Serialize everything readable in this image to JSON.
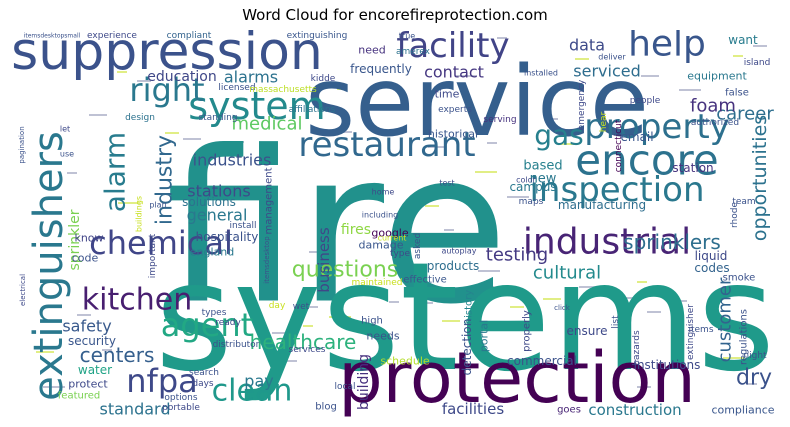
{
  "chart_data": {
    "type": "wordcloud",
    "title": "Word Cloud for encorefireprotection.com",
    "background": "#ffffff",
    "colormap": "viridis",
    "words": [
      {
        "text": "fire",
        "weight": 1.0,
        "color": "#21918c"
      },
      {
        "text": "systems",
        "weight": 0.92,
        "color": "#1f9a8a"
      },
      {
        "text": "service",
        "weight": 0.62,
        "color": "#355f8d"
      },
      {
        "text": "protection",
        "weight": 0.56,
        "color": "#440154"
      },
      {
        "text": "suppression",
        "weight": 0.42,
        "color": "#3b528b"
      },
      {
        "text": "extinguishers",
        "weight": 0.38,
        "color": "#2a788e"
      },
      {
        "text": "encore",
        "weight": 0.36,
        "color": "#2c728e"
      },
      {
        "text": "industrial",
        "weight": 0.34,
        "color": "#482475"
      },
      {
        "text": "facility",
        "weight": 0.32,
        "color": "#414487"
      },
      {
        "text": "property",
        "weight": 0.3,
        "color": "#2d708e"
      },
      {
        "text": "system",
        "weight": 0.3,
        "color": "#238a8d"
      },
      {
        "text": "restaurant",
        "weight": 0.3,
        "color": "#31688e"
      },
      {
        "text": "inspection",
        "weight": 0.3,
        "color": "#2a788e"
      },
      {
        "text": "help",
        "weight": 0.3,
        "color": "#39568c"
      },
      {
        "text": "chemical",
        "weight": 0.29,
        "color": "#404688"
      },
      {
        "text": "kitchen",
        "weight": 0.29,
        "color": "#481f70"
      },
      {
        "text": "agent",
        "weight": 0.28,
        "color": "#22a884"
      },
      {
        "text": "right",
        "weight": 0.27,
        "color": "#2a788e"
      },
      {
        "text": "gas",
        "weight": 0.27,
        "color": "#27808e"
      },
      {
        "text": "clean",
        "weight": 0.26,
        "color": "#1f988b"
      },
      {
        "text": "nfpa",
        "weight": 0.26,
        "color": "#3e4989"
      },
      {
        "text": "alarm",
        "weight": 0.24,
        "color": "#287c8e"
      },
      {
        "text": "industry",
        "weight": 0.22,
        "color": "#31688e"
      },
      {
        "text": "questions",
        "weight": 0.2,
        "color": "#7ad151"
      },
      {
        "text": "sprinklers",
        "weight": 0.17,
        "color": "#2e6f8e"
      },
      {
        "text": "healthcare",
        "weight": 0.17,
        "color": "#2db27d"
      },
      {
        "text": "centers",
        "weight": 0.17,
        "color": "#355f8d"
      },
      {
        "text": "opportunities",
        "weight": 0.16,
        "color": "#2c728e"
      },
      {
        "text": "dry",
        "weight": 0.17,
        "color": "#3b528b"
      },
      {
        "text": "customer",
        "weight": 0.15,
        "color": "#32648e"
      },
      {
        "text": "testing",
        "weight": 0.15,
        "color": "#443a83"
      },
      {
        "text": "career",
        "weight": 0.15,
        "color": "#2e6e8e"
      },
      {
        "text": "foam",
        "weight": 0.15,
        "color": "#46327e"
      },
      {
        "text": "cultural",
        "weight": 0.14,
        "color": "#238a8d"
      },
      {
        "text": "medical",
        "weight": 0.14,
        "color": "#5ec962"
      },
      {
        "text": "industries",
        "weight": 0.13,
        "color": "#3b528b"
      },
      {
        "text": "alarms",
        "weight": 0.13,
        "color": "#2c728e"
      },
      {
        "text": "stations",
        "weight": 0.12,
        "color": "#3e4a89"
      },
      {
        "text": "general",
        "weight": 0.12,
        "color": "#2a788e"
      },
      {
        "text": "standard",
        "weight": 0.12,
        "color": "#2c728e"
      },
      {
        "text": "safety",
        "weight": 0.12,
        "color": "#38598c"
      },
      {
        "text": "pay",
        "weight": 0.12,
        "color": "#2a788e"
      },
      {
        "text": "contact",
        "weight": 0.12,
        "color": "#453781"
      },
      {
        "text": "data",
        "weight": 0.12,
        "color": "#3e4a89"
      },
      {
        "text": "serviced",
        "weight": 0.12,
        "color": "#2e6d8e"
      },
      {
        "text": "sprinkler",
        "weight": 0.11,
        "color": "#7ad151"
      },
      {
        "text": "education",
        "weight": 0.1,
        "color": "#3f4788"
      },
      {
        "text": "fires",
        "weight": 0.1,
        "color": "#8fd744"
      },
      {
        "text": "business",
        "weight": 0.11,
        "color": "#3f4788"
      },
      {
        "text": "building",
        "weight": 0.1,
        "color": "#46307e"
      },
      {
        "text": "construction",
        "weight": 0.1,
        "color": "#2a788e"
      },
      {
        "text": "facilities",
        "weight": 0.1,
        "color": "#3e4989"
      },
      {
        "text": "products",
        "weight": 0.07,
        "color": "#2e6e8e"
      },
      {
        "text": "codes",
        "weight": 0.07,
        "color": "#33638d"
      },
      {
        "text": "liquid",
        "weight": 0.07,
        "color": "#3e4989"
      },
      {
        "text": "based",
        "weight": 0.08,
        "color": "#27808e"
      },
      {
        "text": "email",
        "weight": 0.07,
        "color": "#39568c"
      },
      {
        "text": "station",
        "weight": 0.07,
        "color": "#46337f"
      },
      {
        "text": "campus",
        "weight": 0.07,
        "color": "#2a788e"
      },
      {
        "text": "manufacturing",
        "weight": 0.07,
        "color": "#2e6e8e"
      },
      {
        "text": "new",
        "weight": 0.08,
        "color": "#2a788e"
      },
      {
        "text": "google",
        "weight": 0.06,
        "color": "#440154"
      },
      {
        "text": "hospitality",
        "weight": 0.07,
        "color": "#3b528b"
      },
      {
        "text": "solutions",
        "weight": 0.07,
        "color": "#2c728e"
      },
      {
        "text": "england",
        "weight": 0.07,
        "color": "#2a788e"
      },
      {
        "text": "know",
        "weight": 0.07,
        "color": "#414487"
      },
      {
        "text": "code",
        "weight": 0.06,
        "color": "#3b528b"
      },
      {
        "text": "water",
        "weight": 0.07,
        "color": "#20a386"
      },
      {
        "text": "protect",
        "weight": 0.06,
        "color": "#3e4989"
      },
      {
        "text": "security",
        "weight": 0.07,
        "color": "#39568c"
      },
      {
        "text": "featured",
        "weight": 0.05,
        "color": "#7ad151"
      },
      {
        "text": "commercial",
        "weight": 0.07,
        "color": "#3b528b"
      },
      {
        "text": "institutions",
        "weight": 0.07,
        "color": "#3e4989"
      },
      {
        "text": "schedule",
        "weight": 0.07,
        "color": "#b5de2b"
      },
      {
        "text": "compliance",
        "weight": 0.06,
        "color": "#39568c"
      },
      {
        "text": "portal",
        "weight": 0.07,
        "color": "#2a788e"
      },
      {
        "text": "ensure",
        "weight": 0.07,
        "color": "#3e4989"
      },
      {
        "text": "detection",
        "weight": 0.07,
        "color": "#3b528b"
      },
      {
        "text": "effective",
        "weight": 0.06,
        "color": "#39568c"
      },
      {
        "text": "maintained",
        "weight": 0.05,
        "color": "#c8e020"
      },
      {
        "text": "damage",
        "weight": 0.06,
        "color": "#39568c"
      },
      {
        "text": "blog",
        "weight": 0.05,
        "color": "#3b528b"
      },
      {
        "text": "goes",
        "weight": 0.06,
        "color": "#482475"
      },
      {
        "text": "local",
        "weight": 0.05,
        "color": "#3b528b"
      },
      {
        "text": "history",
        "weight": 0.06,
        "color": "#25848e"
      },
      {
        "text": "historical",
        "weight": 0.06,
        "color": "#39568c"
      },
      {
        "text": "time",
        "weight": 0.06,
        "color": "#3e4989"
      },
      {
        "text": "need",
        "weight": 0.06,
        "color": "#46327e"
      },
      {
        "text": "frequently",
        "weight": 0.07,
        "color": "#39568c"
      },
      {
        "text": "want",
        "weight": 0.06,
        "color": "#287c8e"
      },
      {
        "text": "equipment",
        "weight": 0.06,
        "color": "#2a788e"
      },
      {
        "text": "experience",
        "weight": 0.05,
        "color": "#3e4989"
      },
      {
        "text": "compliant",
        "weight": 0.05,
        "color": "#33638d"
      },
      {
        "text": "extinguishing",
        "weight": 0.05,
        "color": "#39568c"
      },
      {
        "text": "true",
        "weight": 0.04,
        "color": "#3b528b"
      },
      {
        "text": "kidde",
        "weight": 0.05,
        "color": "#3e4989"
      },
      {
        "text": "amerex",
        "weight": 0.05,
        "color": "#2c728e"
      },
      {
        "text": "licensed",
        "weight": 0.05,
        "color": "#3b528b"
      },
      {
        "text": "massachusetts",
        "weight": 0.05,
        "color": "#bddf26"
      },
      {
        "text": "management",
        "weight": 0.05,
        "color": "#3e4989"
      },
      {
        "text": "design",
        "weight": 0.05,
        "color": "#2c728e"
      },
      {
        "text": "standing",
        "weight": 0.05,
        "color": "#39568c"
      },
      {
        "text": "affiliations",
        "weight": 0.05,
        "color": "#2c728e"
      },
      {
        "text": "experts",
        "weight": 0.05,
        "color": "#3b528b"
      },
      {
        "text": "serving",
        "weight": 0.05,
        "color": "#46327e"
      },
      {
        "text": "emergency",
        "weight": 0.05,
        "color": "#3e4989"
      },
      {
        "text": "deliver",
        "weight": 0.04,
        "color": "#3b528b"
      },
      {
        "text": "installed",
        "weight": 0.04,
        "color": "#3b528b"
      },
      {
        "text": "island",
        "weight": 0.05,
        "color": "#3e4989"
      },
      {
        "text": "false",
        "weight": 0.05,
        "color": "#3b528b"
      },
      {
        "text": "hear",
        "weight": 0.05,
        "color": "#c8e020"
      },
      {
        "text": "people",
        "weight": 0.05,
        "color": "#3e4989"
      },
      {
        "text": "authorized",
        "weight": 0.05,
        "color": "#3b528b"
      },
      {
        "text": "connecticut",
        "weight": 0.05,
        "color": "#440154"
      },
      {
        "text": "rhode",
        "weight": 0.05,
        "color": "#3b528b"
      },
      {
        "text": "team",
        "weight": 0.05,
        "color": "#3b528b"
      },
      {
        "text": "regulations",
        "weight": 0.05,
        "color": "#3b528b"
      },
      {
        "text": "smoke",
        "weight": 0.05,
        "color": "#3b528b"
      },
      {
        "text": "hazards",
        "weight": 0.05,
        "color": "#3e4989"
      },
      {
        "text": "items",
        "weight": 0.05,
        "color": "#3b528b"
      },
      {
        "text": "night",
        "weight": 0.04,
        "color": "#3b528b"
      },
      {
        "text": "extinguisher",
        "weight": 0.04,
        "color": "#3e4989"
      },
      {
        "text": "list",
        "weight": 0.05,
        "color": "#3b528b"
      },
      {
        "text": "properly",
        "weight": 0.05,
        "color": "#3e4989"
      },
      {
        "text": "needs",
        "weight": 0.05,
        "color": "#3b528b"
      },
      {
        "text": "high",
        "weight": 0.05,
        "color": "#3b528b"
      },
      {
        "text": "services",
        "weight": 0.04,
        "color": "#3e4989"
      },
      {
        "text": "search",
        "weight": 0.04,
        "color": "#3b528b"
      },
      {
        "text": "days",
        "weight": 0.04,
        "color": "#3e4989"
      },
      {
        "text": "options",
        "weight": 0.04,
        "color": "#3b528b"
      },
      {
        "text": "portable",
        "weight": 0.04,
        "color": "#3e4989"
      },
      {
        "text": "distributor",
        "weight": 0.05,
        "color": "#3b528b"
      },
      {
        "text": "ready",
        "weight": 0.05,
        "color": "#3e4989"
      },
      {
        "text": "types",
        "weight": 0.05,
        "color": "#3b528b"
      },
      {
        "text": "day",
        "weight": 0.05,
        "color": "#c8e020"
      },
      {
        "text": "wet",
        "weight": 0.05,
        "color": "#3b528b"
      },
      {
        "text": "type",
        "weight": 0.04,
        "color": "#3e4989"
      },
      {
        "text": "current",
        "weight": 0.04,
        "color": "#c8e020"
      },
      {
        "text": "asked",
        "weight": 0.05,
        "color": "#3b528b"
      },
      {
        "text": "maps",
        "weight": 0.05,
        "color": "#3b528b"
      },
      {
        "text": "color",
        "weight": 0.04,
        "color": "#3e4989"
      },
      {
        "text": "test",
        "weight": 0.04,
        "color": "#3b528b"
      },
      {
        "text": "home",
        "weight": 0.04,
        "color": "#3e4989"
      },
      {
        "text": "including",
        "weight": 0.04,
        "color": "#3b528b"
      },
      {
        "text": "important",
        "weight": 0.04,
        "color": "#3e4989"
      },
      {
        "text": "buildings",
        "weight": 0.04,
        "color": "#c8e020"
      },
      {
        "text": "plan",
        "weight": 0.04,
        "color": "#3b528b"
      },
      {
        "text": "use",
        "weight": 0.04,
        "color": "#3b528b"
      },
      {
        "text": "let",
        "weight": 0.04,
        "color": "#3e4989"
      },
      {
        "text": "install",
        "weight": 0.04,
        "color": "#3b528b"
      },
      {
        "text": "pagination",
        "weight": 0.03,
        "color": "#3b528b"
      },
      {
        "text": "electrical",
        "weight": 0.03,
        "color": "#3e4989"
      },
      {
        "text": "itemsdesktop",
        "weight": 0.03,
        "color": "#3b528b"
      },
      {
        "text": "autoplay",
        "weight": 0.03,
        "color": "#3e4989"
      },
      {
        "text": "click",
        "weight": 0.03,
        "color": "#3b528b"
      },
      {
        "text": "itemsdesktopsmall",
        "weight": 0.02,
        "color": "#3b528b"
      }
    ]
  }
}
